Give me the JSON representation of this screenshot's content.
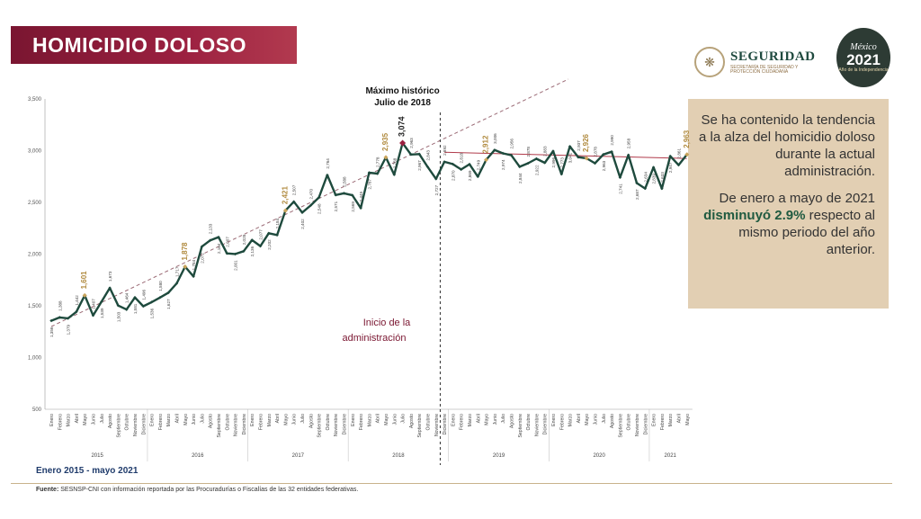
{
  "header": {
    "title": "HOMICIDIO DOLOSO"
  },
  "logos": {
    "seguridad": {
      "name": "SEGURIDAD",
      "subtitle": "SECRETARÍA DE SEGURIDAD Y PROTECCIÓN CIUDADANA",
      "icon": "eagle-seal-icon"
    },
    "mexico2021": {
      "line1": "México",
      "year": "2021",
      "line3": "Año de la Independencia"
    }
  },
  "side_box": {
    "p1": "Se ha contenido la tendencia a la alza del homicidio doloso durante la actual administración.",
    "p2_pre": "De enero a mayo de 2021 ",
    "p2_bold": "disminuyó 2.9%",
    "p2_post": " respecto al mismo periodo del año anterior."
  },
  "footer": {
    "period": "Enero 2015 - mayo 2021",
    "source_label": "Fuente:",
    "source_text": " SESNSP-CNI con información reportada por las Procuradurías o Fiscalías de las 32 entidades federativas."
  },
  "chart_data": {
    "type": "line",
    "title": "HOMICIDIO DOLOSO",
    "ylim": [
      500,
      3500
    ],
    "yticks": [
      500,
      1000,
      1500,
      2000,
      2500,
      3000,
      3500
    ],
    "grid": false,
    "months": [
      "Enero",
      "Febrero",
      "Marzo",
      "Abril",
      "Mayo",
      "Junio",
      "Julio",
      "Agosto",
      "Septiembre",
      "Octubre",
      "Noviembre",
      "Diciembre"
    ],
    "years": [
      "2015",
      "2016",
      "2017",
      "2018",
      "2019",
      "2020",
      "2021"
    ],
    "colors": {
      "line": "#1e4a3d",
      "highlight": "#c9a45c",
      "max": "#9b2040",
      "trend": "#9b6a75",
      "regline": "#b03a4a",
      "admin": "#333333"
    },
    "values": [
      1356,
      1388,
      1379,
      1442,
      1601,
      1407,
      1539,
      1673,
      1503,
      1464,
      1581,
      1496,
      1536,
      1580,
      1627,
      1717,
      1878,
      1784,
      2072,
      2133,
      2164,
      2007,
      2001,
      2028,
      2136,
      2077,
      2202,
      2184,
      2421,
      2507,
      2402,
      2470,
      2548,
      2764,
      2571,
      2588,
      2569,
      2445,
      2787,
      2778,
      2935,
      2768,
      3074,
      2963,
      2967,
      2843,
      2727,
      2892,
      2870,
      2818,
      2869,
      2749,
      2912,
      3006,
      2974,
      2956,
      2844,
      2878,
      2922,
      2883,
      2996,
      2773,
      3041,
      2937,
      2926,
      2878,
      2963,
      2990,
      2741,
      2958,
      2687,
      2634,
      2839,
      2633,
      2947,
      2861,
      2963
    ],
    "highlights": [
      4,
      16,
      28,
      40,
      52,
      64,
      76
    ],
    "max_index": 42,
    "annotations": {
      "max_label": "Máximo histórico",
      "max_sublabel": "Julio de 2018",
      "admin_label_1": "Inicio de la",
      "admin_label_2": "administración",
      "admin_index": 47
    }
  }
}
